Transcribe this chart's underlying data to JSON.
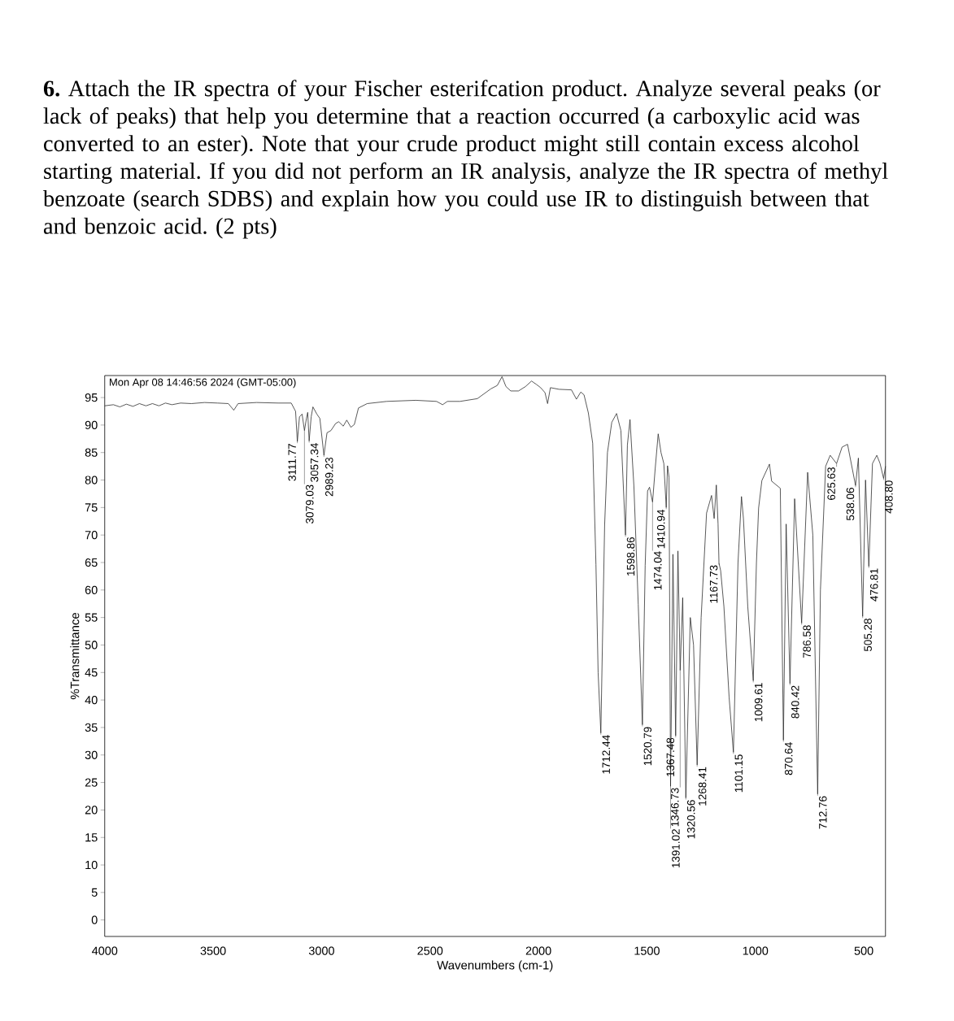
{
  "chart_data": {
    "type": "line",
    "title": "**6.** Attach the IR spectra of your Fischer esterifcation product. Analyze several peaks (or lack of peaks) that help you determine that a reaction occurred (a carboxylic acid was converted to an ester). Note that your crude product might still contain excess alcohol starting material. If you did not perform an IR analysis, analyze the IR spectra of methyl benzoate (search SDBS) and explain how you could use IR to distinguish between that and benzoic acid. (2 pts)",
    "xlabel": "Wavenumbers (cm-1)",
    "ylabel": "%Transmittance",
    "annotations": [
      "Mon Apr 08 14:46:56 2024 (GMT-05:00)",
      {
        "text": "3111.77",
        "x": 3111.77,
        "y": 87.0
      },
      {
        "text": "3079.03",
        "x": 3079.03,
        "y": 89.0
      },
      {
        "text": "3057.34",
        "x": 3057.34,
        "y": 87.1
      },
      {
        "text": "2989.23",
        "x": 2989.23,
        "y": 84.5
      },
      {
        "text": "1712.44",
        "x": 1712.44,
        "y": 34.0
      },
      {
        "text": "1598.86",
        "x": 1598.86,
        "y": 70.0
      },
      {
        "text": "1520.79",
        "x": 1520.79,
        "y": 35.5
      },
      {
        "text": "1474.04",
        "x": 1474.04,
        "y": 76.0
      },
      {
        "text": "1410.94",
        "x": 1410.94,
        "y": 75.0
      },
      {
        "text": "1391.02",
        "x": 1391.02,
        "y": 24.3
      },
      {
        "text": "1367.48",
        "x": 1367.48,
        "y": 33.5
      },
      {
        "text": "1346.73",
        "x": 1346.73,
        "y": 45.4
      },
      {
        "text": "1320.56",
        "x": 1320.56,
        "y": 22.2
      },
      {
        "text": "1268.41",
        "x": 1268.41,
        "y": 28.2
      },
      {
        "text": "1167.73",
        "x": 1167.73,
        "y": 64.9
      },
      {
        "text": "1101.15",
        "x": 1101.15,
        "y": 30.5
      },
      {
        "text": "1009.61",
        "x": 1009.61,
        "y": 43.5
      },
      {
        "text": "870.64",
        "x": 870.64,
        "y": 32.7
      },
      {
        "text": "840.42",
        "x": 840.42,
        "y": 43.0
      },
      {
        "text": "786.58",
        "x": 786.58,
        "y": 54.0
      },
      {
        "text": "712.76",
        "x": 712.76,
        "y": 22.9
      },
      {
        "text": "625.63",
        "x": 625.63,
        "y": 83.0
      },
      {
        "text": "538.06",
        "x": 538.06,
        "y": 79.0
      },
      {
        "text": "505.28",
        "x": 505.28,
        "y": 55.2
      },
      {
        "text": "476.81",
        "x": 476.81,
        "y": 64.3
      },
      {
        "text": "408.80",
        "x": 408.8,
        "y": 80.3
      }
    ],
    "xlim": [
      4000,
      400
    ],
    "xticks": [
      4000,
      3500,
      3000,
      2500,
      2000,
      1500,
      1000,
      500
    ],
    "ylim": [
      -3,
      99
    ],
    "yticks": [
      0,
      5,
      10,
      15,
      20,
      25,
      30,
      35,
      40,
      45,
      50,
      55,
      60,
      65,
      70,
      75,
      80,
      85,
      90,
      95
    ],
    "color": "#222222",
    "x": [
      4000,
      3960,
      3930,
      3900,
      3870,
      3840,
      3810,
      3780,
      3750,
      3720,
      3690,
      3650,
      3600,
      3540,
      3480,
      3430,
      3405,
      3385,
      3300,
      3200,
      3140,
      3120,
      3111.77,
      3102,
      3090,
      3079.03,
      3070,
      3064,
      3057.34,
      3048,
      3040,
      3022,
      3008,
      2989.23,
      2975,
      2957,
      2935,
      2921,
      2900,
      2884,
      2865,
      2849,
      2830,
      2790,
      2700,
      2566,
      2470,
      2442,
      2420,
      2362,
      2282,
      2219,
      2190,
      2168,
      2150,
      2128,
      2092,
      2060,
      2032,
      2010,
      1990,
      1970,
      1958,
      1945,
      1905,
      1848,
      1825,
      1805,
      1790,
      1770,
      1750,
      1735,
      1725,
      1712.44,
      1705,
      1695,
      1682,
      1662,
      1640,
      1620,
      1598.86,
      1590,
      1578,
      1560,
      1540,
      1520.79,
      1508,
      1497,
      1488,
      1474.04,
      1462,
      1448,
      1435,
      1422,
      1410.94,
      1405,
      1398,
      1391.02,
      1380,
      1367.48,
      1357,
      1346.73,
      1335,
      1320.56,
      1300,
      1285,
      1268.41,
      1250,
      1225,
      1202,
      1190,
      1180,
      1172,
      1167.73,
      1160,
      1145,
      1121,
      1101.15,
      1080,
      1064,
      1055,
      1035,
      1009.61,
      995,
      985,
      970,
      935,
      925,
      885,
      870.64,
      858,
      840.42,
      819,
      786.58,
      759,
      735,
      712.76,
      700,
      676,
      655,
      625.63,
      600,
      575,
      538.06,
      525,
      505.28,
      492,
      476.81,
      460,
      440,
      425,
      408.8,
      400
    ],
    "values": [
      93.5,
      93.7,
      93.3,
      93.8,
      93.4,
      93.9,
      93.5,
      93.9,
      93.5,
      94.0,
      93.7,
      94.0,
      93.9,
      94.1,
      94.0,
      93.9,
      92.7,
      93.9,
      94.1,
      94.0,
      94.0,
      92.5,
      87.0,
      91.5,
      92.0,
      89.0,
      91.2,
      92.3,
      87.1,
      91.5,
      93.3,
      92.0,
      91.2,
      84.5,
      88.6,
      89.0,
      90.3,
      90.6,
      89.8,
      90.9,
      89.6,
      90.1,
      93.1,
      93.9,
      94.3,
      94.5,
      94.3,
      93.7,
      94.3,
      94.3,
      94.8,
      96.6,
      97.2,
      98.8,
      97.0,
      96.2,
      96.2,
      97.0,
      98.0,
      97.4,
      96.8,
      95.9,
      93.9,
      96.8,
      96.5,
      96.4,
      94.7,
      96.0,
      95.5,
      92.2,
      86.7,
      64.6,
      45.0,
      34.0,
      50.5,
      71.8,
      85.0,
      90.5,
      92.1,
      89.0,
      70.0,
      86.4,
      91.0,
      78.9,
      57.4,
      35.5,
      64.5,
      78.0,
      78.7,
      76.0,
      82.0,
      88.4,
      85.0,
      83.0,
      75.0,
      82.6,
      80.5,
      24.3,
      66.5,
      33.5,
      67.1,
      45.4,
      58.6,
      22.2,
      55.0,
      50.0,
      28.2,
      55.0,
      74.0,
      77.2,
      73.0,
      79.1,
      72.0,
      64.9,
      63.5,
      57.0,
      40.5,
      30.5,
      65.0,
      77.0,
      73.0,
      57.0,
      43.5,
      65.0,
      74.9,
      79.9,
      82.9,
      79.8,
      78.5,
      32.7,
      72.0,
      43.0,
      76.6,
      54.0,
      81.4,
      70.0,
      22.9,
      60.0,
      82.5,
      84.5,
      83.0,
      86.0,
      86.5,
      79.0,
      84.0,
      55.2,
      80.0,
      64.3,
      83.0,
      84.5,
      83.0,
      80.3,
      82.5
    ]
  }
}
